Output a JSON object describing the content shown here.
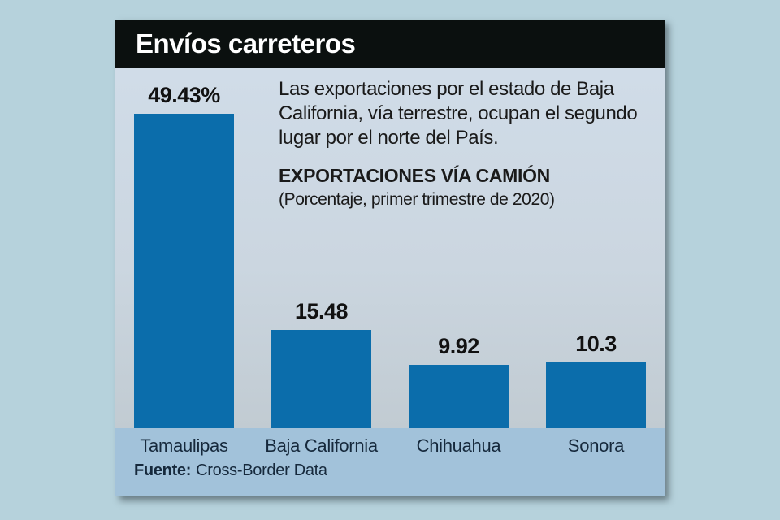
{
  "header": {
    "title": "Envíos carreteros"
  },
  "intro": {
    "lines": [
      "Las exportaciones por el estado de Baja",
      "California, vía terrestre, ocupan el segundo",
      "lugar por el norte del País."
    ]
  },
  "chart_data": {
    "type": "bar",
    "title": "EXPORTACIONES VÍA CAMIÓN",
    "subtitle": "(Porcentaje, primer trimestre de 2020)",
    "categories": [
      "Tamaulipas",
      "Baja California",
      "Chihuahua",
      "Sonora"
    ],
    "values": [
      49.43,
      15.48,
      9.92,
      10.3
    ],
    "value_labels": [
      "49.43%",
      "15.48",
      "9.92",
      "10.3"
    ],
    "unit": "percent",
    "ylim": [
      0,
      50
    ],
    "grid": false,
    "legend": "none",
    "bar_color": "#0b6dab"
  },
  "source": {
    "label": "Fuente:",
    "text": "Cross-Border Data"
  },
  "colors": {
    "page_background": "#b6d2dc",
    "header_background": "#0b100f",
    "header_text": "#ffffff",
    "chart_background_top": "#d0dce8",
    "chart_background_bottom": "#c1cbd2",
    "footer_band": "#a2c2da",
    "bar": "#0b6dab",
    "text": "#1a1a1a",
    "category_label": "#16293c"
  }
}
